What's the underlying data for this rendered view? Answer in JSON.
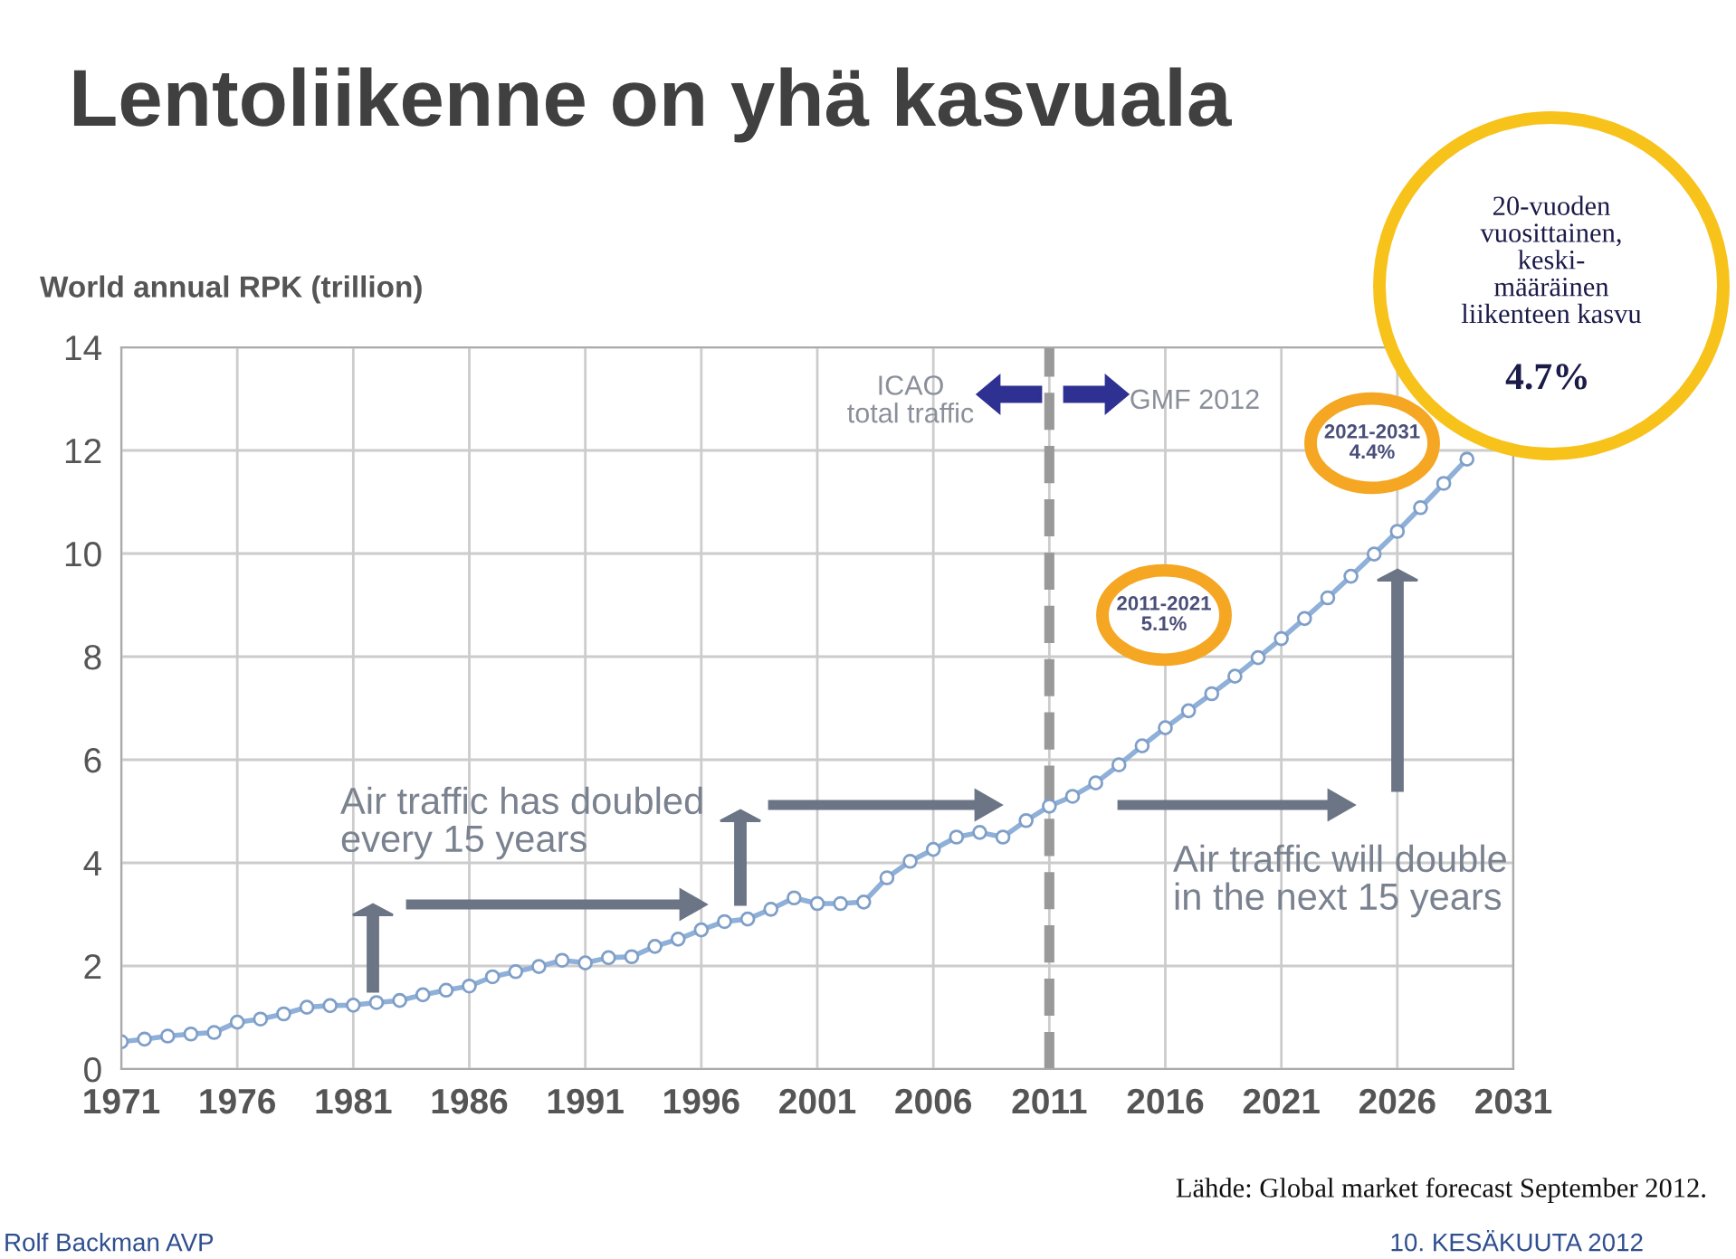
{
  "chart_data": {
    "type": "line",
    "title": "Lentoliikenne on yhä kasvuala",
    "ylabel": "World annual RPK (trillion)",
    "x": [
      1971,
      1972,
      1973,
      1974,
      1975,
      1976,
      1977,
      1978,
      1979,
      1980,
      1981,
      1982,
      1983,
      1984,
      1985,
      1986,
      1987,
      1988,
      1989,
      1990,
      1991,
      1992,
      1993,
      1994,
      1995,
      1996,
      1997,
      1998,
      1999,
      2000,
      2001,
      2002,
      2003,
      2004,
      2005,
      2006,
      2007,
      2008,
      2009,
      2010,
      2011,
      2012,
      2013,
      2014,
      2015,
      2016,
      2017,
      2018,
      2019,
      2020,
      2021,
      2022,
      2023,
      2024,
      2025,
      2026,
      2027,
      2028,
      2029
    ],
    "series": [
      {
        "color": "#8fb0d8",
        "values": [
          0.53,
          0.58,
          0.64,
          0.68,
          0.71,
          0.91,
          0.97,
          1.07,
          1.2,
          1.23,
          1.24,
          1.29,
          1.33,
          1.44,
          1.53,
          1.61,
          1.79,
          1.89,
          1.99,
          2.11,
          2.06,
          2.16,
          2.18,
          2.38,
          2.52,
          2.7,
          2.86,
          2.91,
          3.1,
          3.32,
          3.21,
          3.21,
          3.24,
          3.71,
          4.03,
          4.26,
          4.5,
          4.59,
          4.5,
          4.82,
          5.1,
          5.29,
          5.55,
          5.9,
          6.27,
          6.62,
          6.95,
          7.28,
          7.62,
          7.98,
          8.35,
          8.74,
          9.14,
          9.56,
          9.99,
          10.43,
          10.89,
          11.36,
          11.83
        ]
      }
    ],
    "xlim": [
      1971,
      2031
    ],
    "xticks": [
      1971,
      1976,
      1981,
      1986,
      1991,
      1996,
      2001,
      2006,
      2011,
      2016,
      2021,
      2026,
      2031
    ],
    "ylim": [
      0,
      14
    ],
    "yticks": [
      0,
      2,
      4,
      6,
      8,
      10,
      12,
      14
    ],
    "grid": true,
    "marker": "circle",
    "line_style": "solid",
    "ref_lines": [
      {
        "axis": "x",
        "value": 2011,
        "color": "#999999",
        "line_style": "dashed"
      }
    ],
    "annotations": [
      "Air traffic has doubled\nevery 15 years",
      "Air traffic will double\nin the next 15 years",
      "ICAO\ntotal traffic",
      "GMF 2012",
      "2011-2021\n5.1%",
      "2021-2031\n4.4%",
      "20-vuoden\nvuosittainen,\nkeski-\nmääräinen\nliikenteen kasvu",
      "4.7%",
      "Lähde: Global market forecast September 2012.",
      "Rolf Backman AVP",
      "10. KESÄKUUTA 2012"
    ]
  }
}
